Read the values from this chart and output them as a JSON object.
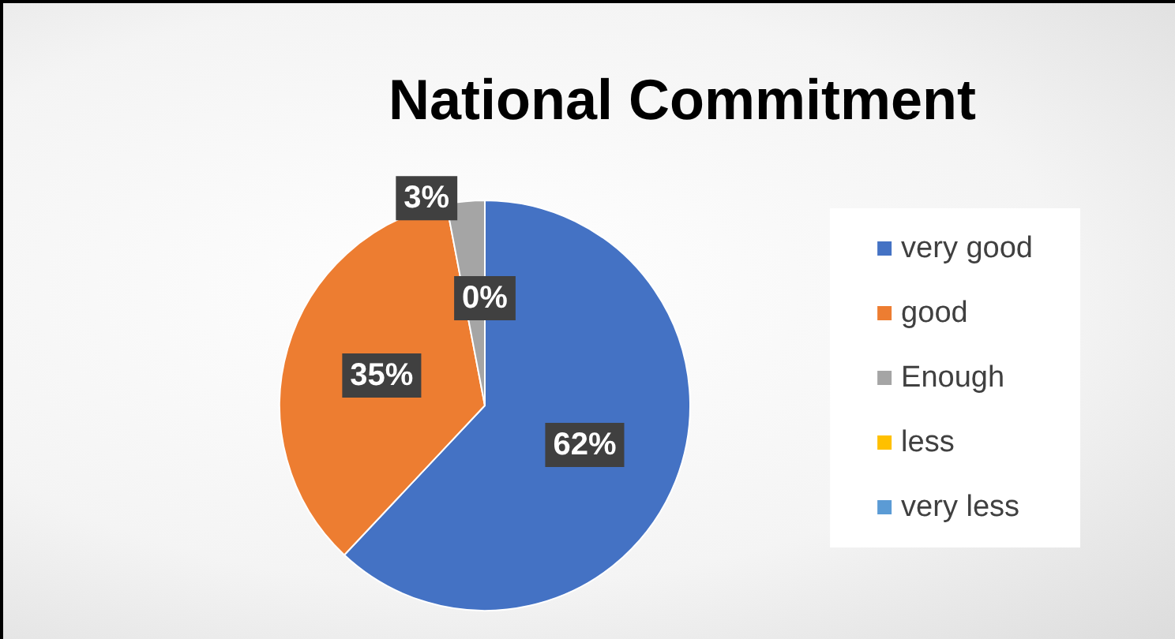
{
  "chart_data": {
    "type": "pie",
    "title": "National Commitment",
    "categories": [
      "very good",
      "good",
      "Enough",
      "less",
      "very less"
    ],
    "values": [
      62,
      35,
      3,
      0,
      0
    ],
    "colors": [
      "#4472c4",
      "#ed7d31",
      "#a5a5a5",
      "#ffc000",
      "#5b9bd5"
    ],
    "value_labels": [
      "62%",
      "35%",
      "3%",
      "0%",
      null
    ],
    "legend": "right"
  }
}
